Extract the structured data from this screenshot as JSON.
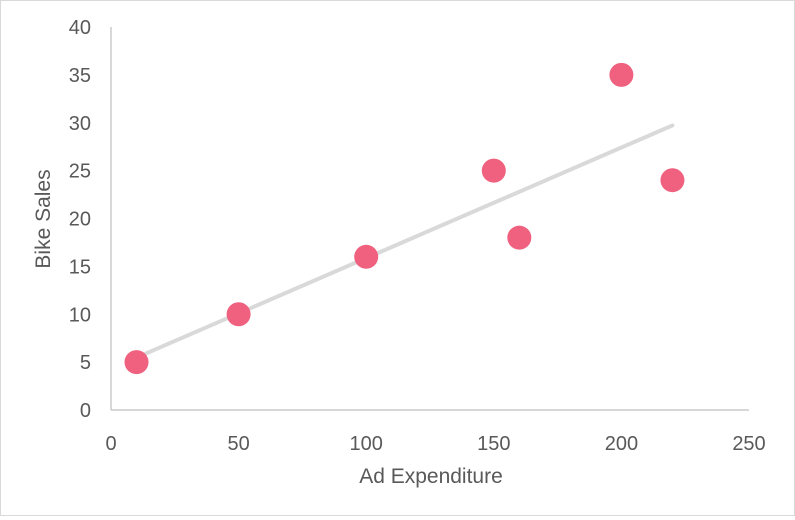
{
  "chart_data": {
    "type": "scatter",
    "title": "",
    "xlabel": "Ad Expenditure",
    "ylabel": "Bike Sales",
    "xlim": [
      0,
      250
    ],
    "ylim": [
      0,
      40
    ],
    "xticks": [
      0,
      50,
      100,
      150,
      200,
      250
    ],
    "yticks": [
      0,
      5,
      10,
      15,
      20,
      25,
      30,
      35,
      40
    ],
    "grid": false,
    "legend": "none",
    "series": [
      {
        "points": [
          {
            "x": 10,
            "y": 5
          },
          {
            "x": 50,
            "y": 10
          },
          {
            "x": 100,
            "y": 16
          },
          {
            "x": 150,
            "y": 25
          },
          {
            "x": 160,
            "y": 18
          },
          {
            "x": 200,
            "y": 35
          },
          {
            "x": 220,
            "y": 24
          }
        ],
        "color": "#f0607f"
      }
    ],
    "trendline": {
      "type": "linear",
      "from_x": 10,
      "to_x": 220,
      "color": "#d9d9d9"
    },
    "axis_color": "#bfbfbf"
  }
}
